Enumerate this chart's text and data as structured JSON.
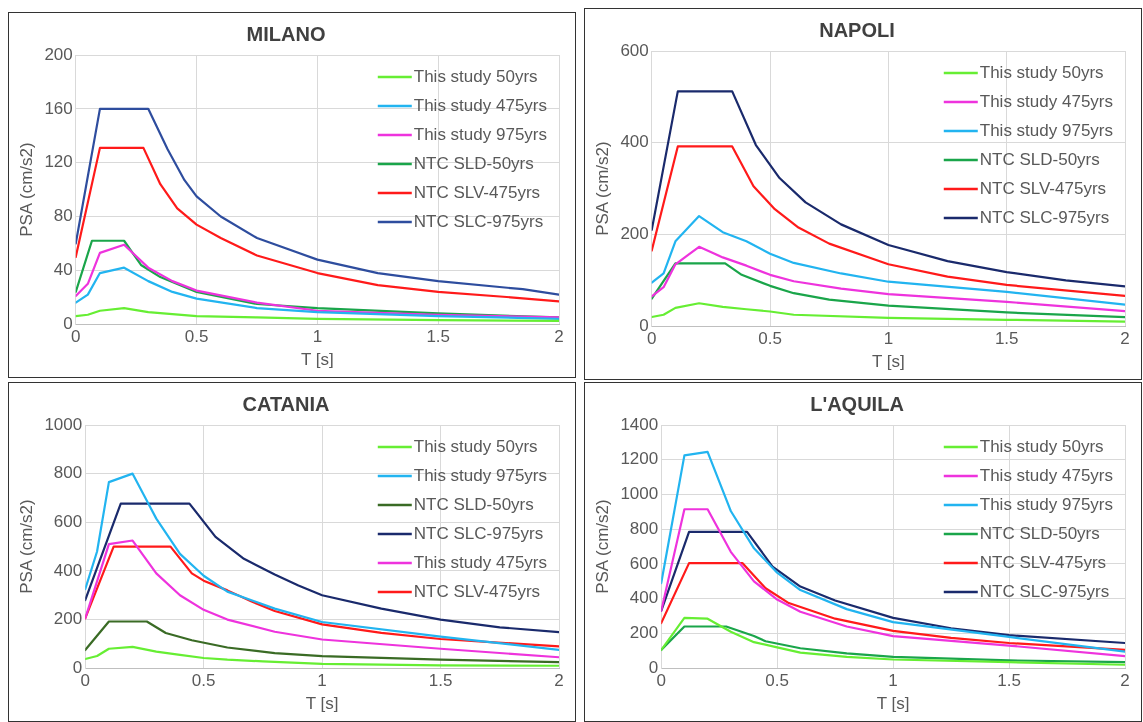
{
  "chart_data": [
    {
      "type": "line",
      "title": "MILANO",
      "xlabel": "T [s]",
      "ylabel": "PSA (cm/s2)",
      "xlim": [
        0,
        2
      ],
      "xticks": [
        0,
        0.5,
        1,
        1.5,
        2
      ],
      "ylim": [
        0,
        200
      ],
      "yticks": [
        0,
        40,
        80,
        120,
        160,
        200
      ],
      "grid": true,
      "legend": "top right",
      "marker": "none",
      "line_style": "solid",
      "series": [
        {
          "name": "This study 50yrs",
          "color": "#66ee33",
          "x": [
            0,
            0.05,
            0.1,
            0.2,
            0.3,
            0.5,
            0.75,
            1,
            1.5,
            2
          ],
          "values": [
            6,
            7,
            10,
            12,
            9,
            6,
            5,
            4,
            3,
            2.5
          ]
        },
        {
          "name": "This study 475yrs",
          "color": "#22b4f0",
          "x": [
            0,
            0.05,
            0.1,
            0.2,
            0.3,
            0.4,
            0.5,
            0.75,
            1,
            1.5,
            2
          ],
          "values": [
            16,
            22,
            38,
            42,
            32,
            24,
            19,
            12,
            9,
            6,
            4
          ]
        },
        {
          "name": "This study 975yrs",
          "color": "#ee33dd",
          "x": [
            0,
            0.05,
            0.1,
            0.2,
            0.3,
            0.4,
            0.5,
            0.75,
            1,
            1.5,
            2
          ],
          "values": [
            21,
            30,
            53,
            59,
            42,
            32,
            25,
            16,
            10,
            7,
            5
          ]
        },
        {
          "name": "NTC SLD-50yrs",
          "color": "#1aa54a",
          "x": [
            0,
            0.067,
            0.2,
            0.27,
            0.35,
            0.5,
            0.75,
            1,
            1.5,
            2
          ],
          "values": [
            24,
            62,
            62,
            44,
            35,
            24,
            15,
            12,
            8,
            5
          ]
        },
        {
          "name": "NTC SLV-475yrs",
          "color": "#ff1a1a",
          "x": [
            0,
            0.1,
            0.28,
            0.35,
            0.42,
            0.5,
            0.6,
            0.75,
            1,
            1.25,
            1.5,
            1.8,
            2
          ],
          "values": [
            50,
            131,
            131,
            104,
            86,
            74,
            64,
            51,
            38,
            29,
            24,
            20,
            17
          ]
        },
        {
          "name": "NTC SLC-975yrs",
          "color": "#2e4d9e",
          "x": [
            0,
            0.1,
            0.3,
            0.38,
            0.45,
            0.5,
            0.6,
            0.75,
            1,
            1.25,
            1.5,
            1.85,
            2
          ],
          "values": [
            60,
            160,
            160,
            130,
            107,
            95,
            80,
            64,
            48,
            38,
            32,
            26,
            22
          ]
        }
      ]
    },
    {
      "type": "line",
      "title": "NAPOLI",
      "xlabel": "T [s]",
      "ylabel": "PSA (cm/s2)",
      "xlim": [
        0,
        2
      ],
      "xticks": [
        0,
        0.5,
        1,
        1.5,
        2
      ],
      "ylim": [
        0,
        600
      ],
      "yticks": [
        0,
        200,
        400,
        600
      ],
      "grid": true,
      "legend": "top right",
      "marker": "none",
      "line_style": "solid",
      "series": [
        {
          "name": "This study 50yrs",
          "color": "#66ee33",
          "x": [
            0,
            0.05,
            0.1,
            0.2,
            0.3,
            0.4,
            0.5,
            0.6,
            1,
            1.5,
            2
          ],
          "values": [
            20,
            25,
            40,
            50,
            42,
            37,
            32,
            25,
            18,
            14,
            10
          ]
        },
        {
          "name": "This study 475yrs",
          "color": "#ee33dd",
          "x": [
            0,
            0.05,
            0.1,
            0.2,
            0.3,
            0.4,
            0.5,
            0.6,
            0.8,
            1,
            1.5,
            2
          ],
          "values": [
            65,
            85,
            135,
            173,
            150,
            132,
            112,
            98,
            82,
            70,
            53,
            33
          ]
        },
        {
          "name": "This study 975yrs",
          "color": "#22b4f0",
          "x": [
            0,
            0.05,
            0.1,
            0.2,
            0.3,
            0.4,
            0.5,
            0.6,
            0.8,
            1,
            1.5,
            2
          ],
          "values": [
            95,
            115,
            185,
            240,
            205,
            185,
            158,
            138,
            115,
            97,
            75,
            47
          ]
        },
        {
          "name": "NTC SLD-50yrs",
          "color": "#1aa54a",
          "x": [
            0,
            0.1,
            0.31,
            0.38,
            0.5,
            0.6,
            0.75,
            1,
            1.5,
            2
          ],
          "values": [
            60,
            137,
            137,
            112,
            88,
            72,
            58,
            45,
            30,
            20
          ]
        },
        {
          "name": "NTC SLV-475yrs",
          "color": "#ff1a1a",
          "x": [
            0,
            0.11,
            0.34,
            0.43,
            0.52,
            0.62,
            0.75,
            1,
            1.25,
            1.5,
            2
          ],
          "values": [
            165,
            392,
            392,
            305,
            255,
            215,
            180,
            135,
            108,
            90,
            66
          ]
        },
        {
          "name": "NTC SLC-975yrs",
          "color": "#1a2a6c",
          "x": [
            0,
            0.11,
            0.34,
            0.44,
            0.54,
            0.65,
            0.8,
            1,
            1.25,
            1.5,
            1.75,
            2
          ],
          "values": [
            210,
            512,
            512,
            395,
            323,
            270,
            222,
            177,
            142,
            118,
            100,
            87
          ]
        }
      ]
    },
    {
      "type": "line",
      "title": "CATANIA",
      "xlabel": "T [s]",
      "ylabel": "PSA (cm/s2)",
      "xlim": [
        0,
        2
      ],
      "xticks": [
        0,
        0.5,
        1,
        1.5,
        2
      ],
      "ylim": [
        0,
        1000
      ],
      "yticks": [
        0,
        200,
        400,
        600,
        800,
        1000
      ],
      "grid": true,
      "legend": "top right",
      "marker": "none",
      "line_style": "solid",
      "series": [
        {
          "name": "This study 50yrs",
          "color": "#66ee33",
          "x": [
            0,
            0.05,
            0.1,
            0.2,
            0.3,
            0.4,
            0.5,
            0.6,
            0.75,
            1,
            1.5,
            2
          ],
          "values": [
            38,
            50,
            80,
            88,
            68,
            55,
            42,
            35,
            28,
            18,
            12,
            10
          ]
        },
        {
          "name": "This study 975yrs",
          "color": "#22b4f0",
          "x": [
            0,
            0.05,
            0.1,
            0.2,
            0.3,
            0.4,
            0.5,
            0.6,
            0.8,
            1,
            1.5,
            2
          ],
          "values": [
            325,
            480,
            765,
            800,
            615,
            470,
            380,
            315,
            245,
            190,
            130,
            75
          ]
        },
        {
          "name": "NTC SLD-50yrs",
          "color": "#3a6b25",
          "x": [
            0,
            0.1,
            0.26,
            0.34,
            0.45,
            0.6,
            0.8,
            1,
            1.5,
            2
          ],
          "values": [
            75,
            192,
            192,
            145,
            115,
            85,
            62,
            50,
            35,
            25
          ]
        },
        {
          "name": "NTC SLC-975yrs",
          "color": "#1a2a6c",
          "x": [
            0,
            0.15,
            0.44,
            0.55,
            0.67,
            0.8,
            0.9,
            1,
            1.25,
            1.5,
            1.75,
            2
          ],
          "values": [
            280,
            677,
            677,
            540,
            450,
            385,
            340,
            300,
            245,
            200,
            168,
            148
          ]
        },
        {
          "name": "This study 475yrs",
          "color": "#ee33dd",
          "x": [
            0,
            0.1,
            0.2,
            0.3,
            0.4,
            0.5,
            0.6,
            0.8,
            1,
            1.5,
            2
          ],
          "values": [
            205,
            510,
            525,
            390,
            300,
            240,
            200,
            150,
            118,
            80,
            45
          ]
        },
        {
          "name": "NTC SLV-475yrs",
          "color": "#ff1a1a",
          "x": [
            0,
            0.12,
            0.36,
            0.45,
            0.5,
            0.6,
            0.7,
            0.8,
            1,
            1.25,
            1.5,
            2
          ],
          "values": [
            205,
            500,
            500,
            390,
            360,
            320,
            275,
            235,
            180,
            145,
            120,
            90
          ]
        }
      ]
    },
    {
      "type": "line",
      "title": "L'AQUILA",
      "xlabel": "T [s]",
      "ylabel": "PSA (cm/s2)",
      "xlim": [
        0,
        2
      ],
      "xticks": [
        0,
        0.5,
        1,
        1.5,
        2
      ],
      "ylim": [
        0,
        1400
      ],
      "yticks": [
        0,
        200,
        400,
        600,
        800,
        1000,
        1200,
        1400
      ],
      "grid": true,
      "legend": "top right",
      "marker": "none",
      "line_style": "solid",
      "series": [
        {
          "name": "This study 50yrs",
          "color": "#66ee33",
          "x": [
            0,
            0.1,
            0.2,
            0.3,
            0.4,
            0.5,
            0.6,
            0.8,
            1,
            1.5,
            2
          ],
          "values": [
            105,
            290,
            285,
            210,
            150,
            120,
            90,
            65,
            50,
            35,
            20
          ]
        },
        {
          "name": "This study 475yrs",
          "color": "#ee33dd",
          "x": [
            0,
            0.1,
            0.2,
            0.3,
            0.4,
            0.5,
            0.6,
            0.8,
            1,
            1.5,
            2
          ],
          "values": [
            330,
            915,
            915,
            670,
            500,
            395,
            325,
            240,
            185,
            130,
            70
          ]
        },
        {
          "name": "This study 975yrs",
          "color": "#22b4f0",
          "x": [
            0,
            0.1,
            0.2,
            0.3,
            0.4,
            0.5,
            0.6,
            0.8,
            1,
            1.5,
            2
          ],
          "values": [
            490,
            1225,
            1245,
            905,
            690,
            550,
            450,
            340,
            265,
            180,
            95
          ]
        },
        {
          "name": "NTC SLD-50yrs",
          "color": "#1aa54a",
          "x": [
            0,
            0.1,
            0.28,
            0.4,
            0.45,
            0.6,
            0.8,
            1,
            1.5,
            2
          ],
          "values": [
            105,
            240,
            240,
            185,
            155,
            115,
            85,
            65,
            45,
            35
          ]
        },
        {
          "name": "NTC SLV-475yrs",
          "color": "#ff1a1a",
          "x": [
            0,
            0.12,
            0.35,
            0.45,
            0.55,
            0.75,
            1,
            1.25,
            1.5,
            2
          ],
          "values": [
            260,
            605,
            605,
            460,
            375,
            285,
            215,
            175,
            145,
            105
          ]
        },
        {
          "name": "NTC SLC-975yrs",
          "color": "#1a2a6c",
          "x": [
            0,
            0.12,
            0.37,
            0.48,
            0.6,
            0.75,
            1,
            1.25,
            1.5,
            2
          ],
          "values": [
            330,
            785,
            785,
            585,
            470,
            390,
            290,
            230,
            190,
            145
          ]
        }
      ]
    }
  ]
}
